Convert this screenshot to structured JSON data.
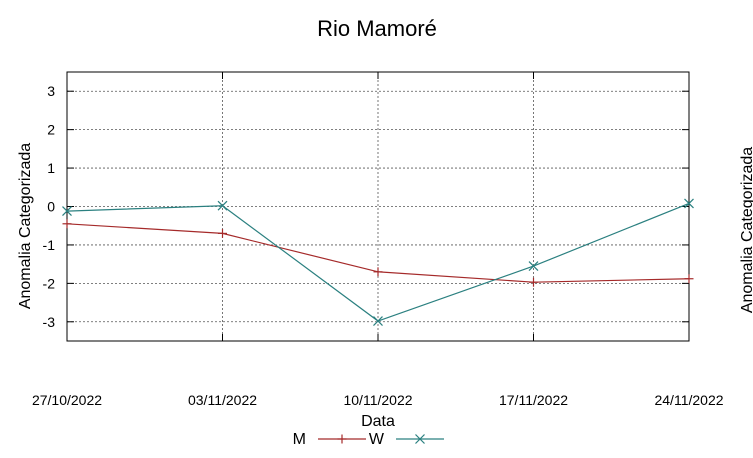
{
  "chart_data": {
    "type": "line",
    "title": "Rio Mamoré",
    "xlabel": "Data",
    "ylabel": "Anomalia Categorizada",
    "right_axis_label_clipped": "Anomalia Categorizada",
    "x": [
      "27/10/2022",
      "03/11/2022",
      "10/11/2022",
      "17/11/2022",
      "24/11/2022"
    ],
    "xtick_labels": [
      "27/10/2022",
      "03/11/2022",
      "10/11/2022",
      "17/11/2022",
      "24/11/2022"
    ],
    "yticks": [
      3,
      2,
      1,
      0,
      -1,
      -2,
      -3
    ],
    "ytick_labels": [
      "3",
      "2",
      "1",
      "0",
      "-1",
      "-2",
      "-3"
    ],
    "ylim": [
      -3.5,
      3.5
    ],
    "grid": true,
    "legend_placement": "bottom",
    "series": [
      {
        "name": "M",
        "color": "#a52a2a",
        "marker": "plus",
        "values": [
          -0.45,
          -0.7,
          -1.7,
          -1.97,
          -1.88
        ]
      },
      {
        "name": "W",
        "color": "#2b8080",
        "marker": "cross",
        "values": [
          -0.12,
          0.02,
          -2.98,
          -1.55,
          0.08
        ]
      }
    ]
  }
}
